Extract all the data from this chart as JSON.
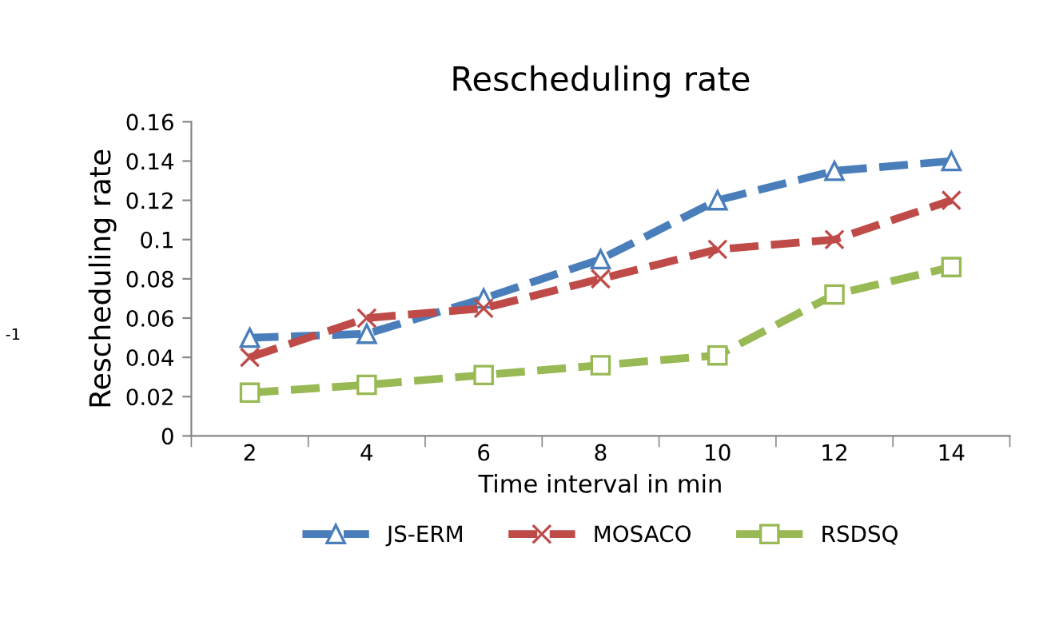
{
  "chart_data": {
    "type": "line",
    "title": "Rescheduling rate",
    "xlabel": "Time interval in min",
    "ylabel": "Rescheduling rate",
    "categories": [
      "2",
      "4",
      "6",
      "8",
      "10",
      "12",
      "14"
    ],
    "series": [
      {
        "name": "JS-ERM",
        "color": "#4a7ebb",
        "marker": "triangle",
        "values": [
          0.05,
          0.052,
          0.07,
          0.09,
          0.12,
          0.135,
          0.14
        ]
      },
      {
        "name": "MOSACO",
        "color": "#be4b48",
        "marker": "cross",
        "values": [
          0.04,
          0.06,
          0.065,
          0.08,
          0.095,
          0.1,
          0.12
        ]
      },
      {
        "name": "RSDSQ",
        "color": "#98b954",
        "marker": "square",
        "values": [
          0.022,
          0.026,
          0.031,
          0.036,
          0.041,
          0.072,
          0.086
        ]
      }
    ],
    "ylim": [
      0,
      0.16
    ],
    "yticks": [
      0,
      0.02,
      0.04,
      0.06,
      0.08,
      0.1,
      0.12,
      0.14,
      0.16
    ],
    "line_style": "dashed",
    "legend": "bottom",
    "grid": false,
    "annotations": [
      "-1"
    ]
  }
}
